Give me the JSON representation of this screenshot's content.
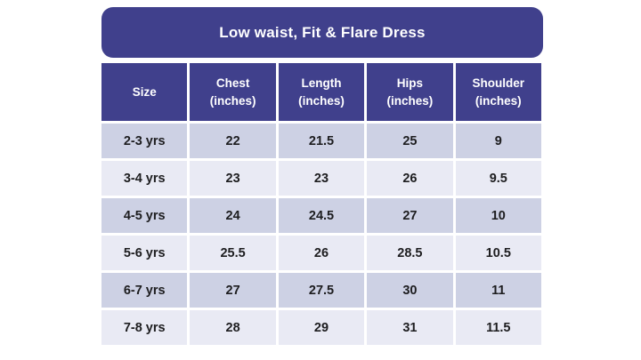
{
  "chart_data": {
    "type": "table",
    "title": "Low waist, Fit & Flare Dress",
    "columns": [
      "Size",
      "Chest (inches)",
      "Length (inches)",
      "Hips (inches)",
      "Shoulder (inches)"
    ],
    "rows": [
      [
        "2-3 yrs",
        22,
        21.5,
        25,
        9
      ],
      [
        "3-4 yrs",
        23,
        23,
        26,
        9.5
      ],
      [
        "4-5 yrs",
        24,
        24.5,
        27,
        10
      ],
      [
        "5-6 yrs",
        25.5,
        26,
        28.5,
        10.5
      ],
      [
        "6-7 yrs",
        27,
        27.5,
        30,
        11
      ],
      [
        "7-8 yrs",
        28,
        29,
        31,
        11.5
      ]
    ]
  },
  "header_display": [
    "Size",
    "Chest\n(inches)",
    "Length\n(inches)",
    "Hips\n(inches)",
    "Shoulder\n(inches)"
  ],
  "colors": {
    "purple": "#40408C",
    "row-dark": "#CDD1E4",
    "row-light": "#E9EAF4",
    "header-text": "#FFFFFF",
    "body-text": "#1D1D1F",
    "page-bg": "#FFFFFF"
  }
}
